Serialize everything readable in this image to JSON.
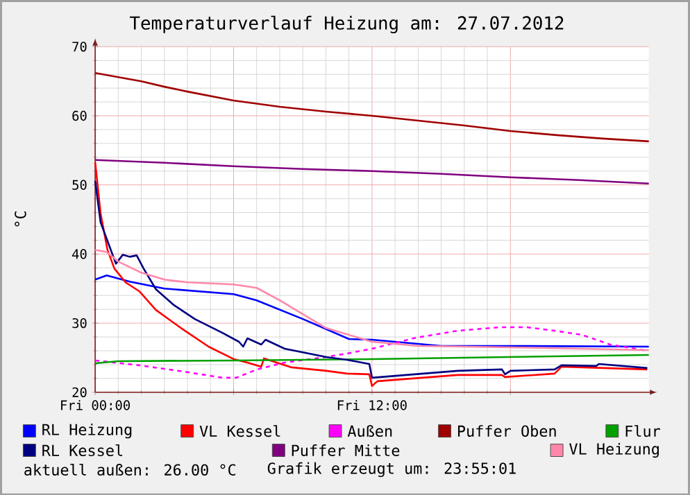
{
  "chart_data": {
    "type": "line",
    "title": "Temperaturverlauf Heizung am: 27.07.2012",
    "ylabel": "°C",
    "xlim": [
      "2012-07-27T00:00",
      "2012-07-28T00:00"
    ],
    "ylim": [
      20,
      70
    ],
    "xticks": [
      {
        "value": "2012-07-27T00:00",
        "label": "Fri 00:00"
      },
      {
        "value": "2012-07-27T06:00",
        "label": null
      },
      {
        "value": "2012-07-27T12:00",
        "label": "Fri 12:00"
      },
      {
        "value": "2012-07-27T18:00",
        "label": null
      }
    ],
    "yticks": [
      20,
      30,
      40,
      50,
      60,
      70
    ],
    "grid": true,
    "legend": "bottom",
    "marker": "none",
    "line_style": "solid",
    "annotations": [
      "aktuell außen: 26.00 °C",
      "Grafik erzeugt um: 23:55:01"
    ],
    "series": [
      {
        "name": "RL Heizung",
        "color": "#0000ff",
        "x": [
          "2012-07-27T00:00",
          "2012-07-27T00:30",
          "2012-07-27T01:30",
          "2012-07-27T03:00",
          "2012-07-27T06:00",
          "2012-07-27T07:00",
          "2012-07-27T09:00",
          "2012-07-27T11:00",
          "2012-07-27T12:00",
          "2012-07-27T15:00",
          "2012-07-27T18:00",
          "2012-07-28T00:00"
        ],
        "values": [
          36.3,
          36.9,
          36,
          35,
          34.2,
          33.3,
          30.6,
          27.7,
          27.6,
          26.7,
          26.7,
          26.6
        ]
      },
      {
        "name": "VL Kessel",
        "color": "#ff0000",
        "x": [
          "2012-07-27T00:00",
          "2012-07-27T00:14",
          "2012-07-27T00:32",
          "2012-07-27T00:50",
          "2012-07-27T01:19",
          "2012-07-27T01:55",
          "2012-07-27T02:38",
          "2012-07-27T03:43",
          "2012-07-27T04:55",
          "2012-07-27T06:00",
          "2012-07-27T06:36",
          "2012-07-27T07:12",
          "2012-07-27T07:19",
          "2012-07-27T08:31",
          "2012-07-27T10:01",
          "2012-07-27T10:55",
          "2012-07-27T11:53",
          "2012-07-27T12:00",
          "2012-07-27T12:14",
          "2012-07-27T15:43",
          "2012-07-27T17:38",
          "2012-07-27T17:46",
          "2012-07-27T19:55",
          "2012-07-27T20:13",
          "2012-07-27T23:56"
        ],
        "values": [
          53.3,
          45.9,
          40.6,
          37.9,
          35.9,
          34.6,
          31.9,
          29.3,
          26.6,
          24.8,
          24.3,
          23.7,
          24.9,
          23.6,
          23.1,
          22.7,
          22.6,
          20.9,
          21.6,
          22.5,
          22.5,
          22.2,
          22.7,
          23.7,
          23.3
        ]
      },
      {
        "name": "Außen",
        "color": "#ff00ff",
        "line_style": "dashed",
        "x": [
          "2012-07-27T00:00",
          "2012-07-27T01:55",
          "2012-07-27T04:01",
          "2012-07-27T05:31",
          "2012-07-27T06:07",
          "2012-07-27T07:01",
          "2012-07-27T08:13",
          "2012-07-27T10:01",
          "2012-07-27T10:55",
          "2012-07-27T12:00",
          "2012-07-27T13:55",
          "2012-07-27T15:43",
          "2012-07-27T17:31",
          "2012-07-27T18:43",
          "2012-07-27T19:55",
          "2012-07-27T21:07",
          "2012-07-27T22:19",
          "2012-07-27T23:56"
        ],
        "values": [
          24.6,
          23.9,
          22.9,
          22.1,
          22.1,
          23.3,
          24.3,
          25.1,
          25.6,
          26.3,
          27.9,
          28.9,
          29.4,
          29.4,
          28.9,
          28.3,
          26.9,
          26.0
        ]
      },
      {
        "name": "Puffer Oben",
        "color": "#a00000",
        "x": [
          "2012-07-27T00:00",
          "2012-07-27T01:00",
          "2012-07-27T02:00",
          "2012-07-27T03:00",
          "2012-07-27T04:00",
          "2012-07-27T06:00",
          "2012-07-27T08:00",
          "2012-07-27T10:00",
          "2012-07-27T12:00",
          "2012-07-27T14:00",
          "2012-07-27T16:00",
          "2012-07-27T18:00",
          "2012-07-27T20:00",
          "2012-07-27T22:00",
          "2012-07-28T00:00"
        ],
        "values": [
          66.2,
          65.6,
          65,
          64.2,
          63.5,
          62.2,
          61.3,
          60.6,
          60,
          59.3,
          58.6,
          57.8,
          57.2,
          56.7,
          56.3
        ]
      },
      {
        "name": "Flur",
        "color": "#00a000",
        "x": [
          "2012-07-27T00:00",
          "2012-07-27T01:00",
          "2012-07-27T06:00",
          "2012-07-27T12:00",
          "2012-07-27T18:00",
          "2012-07-28T00:00"
        ],
        "values": [
          24.2,
          24.5,
          24.6,
          24.8,
          25.1,
          25.4
        ]
      },
      {
        "name": "RL Kessel",
        "color": "#000080",
        "x": [
          "2012-07-27T00:00",
          "2012-07-27T00:14",
          "2012-07-27T00:36",
          "2012-07-27T00:54",
          "2012-07-27T01:12",
          "2012-07-27T01:30",
          "2012-07-27T01:48",
          "2012-07-27T02:06",
          "2012-07-27T02:38",
          "2012-07-27T03:25",
          "2012-07-27T04:19",
          "2012-07-27T05:31",
          "2012-07-27T06:14",
          "2012-07-27T06:25",
          "2012-07-27T06:36",
          "2012-07-27T07:12",
          "2012-07-27T07:23",
          "2012-07-27T08:13",
          "2012-07-27T10:01",
          "2012-07-27T10:55",
          "2012-07-27T11:53",
          "2012-07-27T12:00",
          "2012-07-27T15:43",
          "2012-07-27T17:38",
          "2012-07-27T17:46",
          "2012-07-27T18:00",
          "2012-07-27T19:55",
          "2012-07-27T20:13",
          "2012-07-27T21:43",
          "2012-07-27T21:50",
          "2012-07-27T23:56"
        ],
        "values": [
          50.6,
          44.6,
          41.3,
          38.6,
          39.9,
          39.6,
          39.8,
          37.9,
          34.9,
          32.6,
          30.6,
          28.6,
          27.3,
          26.6,
          27.8,
          26.9,
          27.6,
          26.3,
          25.1,
          24.7,
          24.1,
          22.1,
          23.1,
          23.3,
          22.6,
          23.1,
          23.3,
          23.9,
          23.8,
          24.1,
          23.5
        ]
      },
      {
        "name": "Puffer Mitte",
        "color": "#800080",
        "x": [
          "2012-07-27T00:00",
          "2012-07-27T03:00",
          "2012-07-27T06:00",
          "2012-07-27T09:00",
          "2012-07-27T12:00",
          "2012-07-27T15:00",
          "2012-07-27T18:00",
          "2012-07-27T21:00",
          "2012-07-28T00:00"
        ],
        "values": [
          53.6,
          53.2,
          52.7,
          52.3,
          52,
          51.6,
          51.1,
          50.7,
          50.2
        ]
      },
      {
        "name": "VL Heizung",
        "color": "#ff88aa",
        "x": [
          "2012-07-27T00:00",
          "2012-07-27T00:30",
          "2012-07-27T01:00",
          "2012-07-27T02:00",
          "2012-07-27T03:00",
          "2012-07-27T04:00",
          "2012-07-27T06:00",
          "2012-07-27T07:00",
          "2012-07-27T08:00",
          "2012-07-27T09:00",
          "2012-07-27T10:00",
          "2012-07-27T11:00",
          "2012-07-27T12:00",
          "2012-07-27T14:00",
          "2012-07-27T18:00",
          "2012-07-28T00:00"
        ],
        "values": [
          40.6,
          40.3,
          38.9,
          37.3,
          36.3,
          35.9,
          35.6,
          35.1,
          33.3,
          31.3,
          29.3,
          28.3,
          27.3,
          26.7,
          26.5,
          26.1
        ]
      }
    ]
  }
}
